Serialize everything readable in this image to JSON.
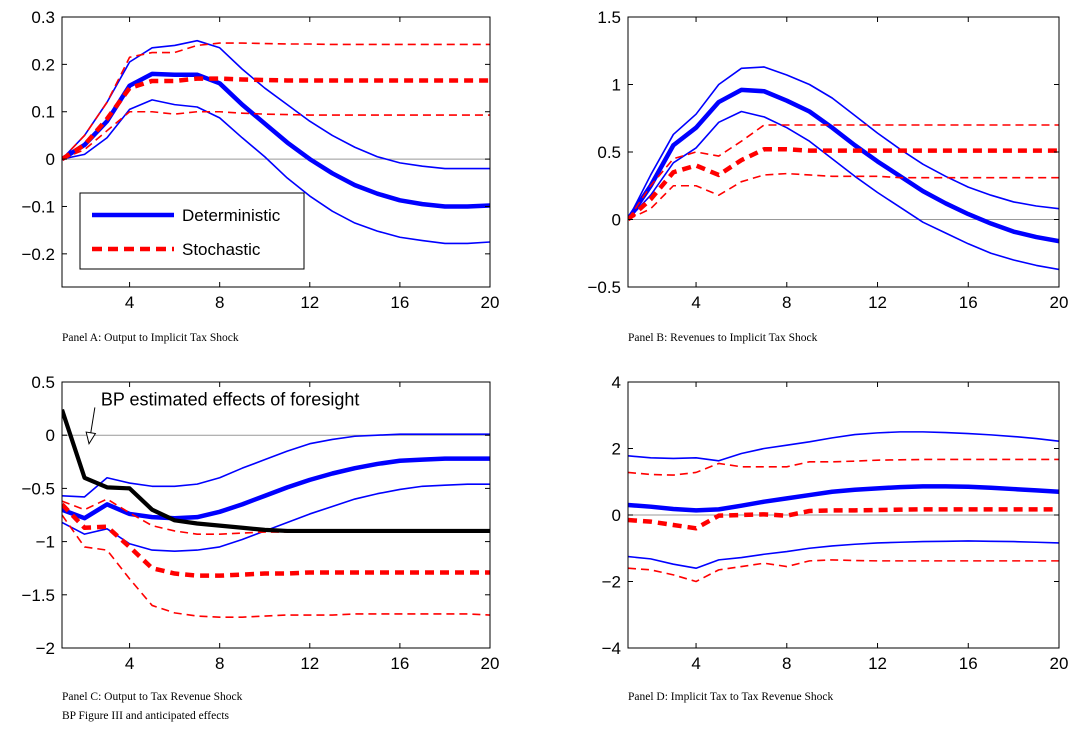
{
  "figure_note": "BP Figure III and anticipated effects",
  "colors": {
    "deterministic": "#0000ff",
    "stochastic": "#ff0000",
    "bp": "#000000",
    "zero_line": "#999999"
  },
  "chart_data": [
    {
      "type": "line",
      "caption": "Panel A: Output to Implicit Tax Shock",
      "xlim": [
        1,
        20
      ],
      "ylim": [
        -0.27,
        0.3
      ],
      "xticks": [
        4,
        8,
        12,
        16,
        20
      ],
      "yticks": [
        -0.2,
        -0.1,
        0,
        0.1,
        0.2,
        0.3
      ],
      "ytick_labels": [
        "−0.2",
        "−0.1",
        "0",
        "0.1",
        "0.2",
        "0.3"
      ],
      "legend": {
        "position": "lower-left",
        "entries": [
          {
            "label": "Deterministic",
            "color": "#0000ff",
            "dash": "solid"
          },
          {
            "label": "Stochastic",
            "color": "#ff0000",
            "dash": "dashed"
          }
        ]
      },
      "x": [
        1,
        2,
        3,
        4,
        5,
        6,
        7,
        8,
        9,
        10,
        11,
        12,
        13,
        14,
        15,
        16,
        17,
        18,
        19,
        20
      ],
      "series": [
        {
          "color": "#0000ff",
          "style": "thick",
          "values": [
            0,
            0.03,
            0.08,
            0.155,
            0.18,
            0.178,
            0.178,
            0.16,
            0.115,
            0.075,
            0.035,
            0,
            -0.03,
            -0.055,
            -0.073,
            -0.087,
            -0.095,
            -0.1,
            -0.1,
            -0.098
          ]
        },
        {
          "color": "#0000ff",
          "style": "thin",
          "values": [
            0,
            0.05,
            0.12,
            0.205,
            0.235,
            0.24,
            0.25,
            0.235,
            0.19,
            0.15,
            0.115,
            0.08,
            0.05,
            0.025,
            0.005,
            -0.008,
            -0.015,
            -0.02,
            -0.02,
            -0.02
          ]
        },
        {
          "color": "#0000ff",
          "style": "thin",
          "values": [
            0,
            0.01,
            0.045,
            0.105,
            0.125,
            0.115,
            0.11,
            0.087,
            0.045,
            0.005,
            -0.04,
            -0.078,
            -0.11,
            -0.135,
            -0.152,
            -0.165,
            -0.172,
            -0.178,
            -0.178,
            -0.175
          ]
        },
        {
          "color": "#ff0000",
          "style": "thick-dashed",
          "values": [
            0,
            0.03,
            0.085,
            0.15,
            0.165,
            0.165,
            0.17,
            0.17,
            0.168,
            0.167,
            0.166,
            0.166,
            0.166,
            0.166,
            0.166,
            0.166,
            0.166,
            0.166,
            0.166,
            0.166
          ]
        },
        {
          "color": "#ff0000",
          "style": "thin-dashed",
          "values": [
            0,
            0.05,
            0.12,
            0.215,
            0.225,
            0.225,
            0.24,
            0.245,
            0.245,
            0.244,
            0.243,
            0.243,
            0.242,
            0.242,
            0.242,
            0.242,
            0.242,
            0.242,
            0.242,
            0.242
          ]
        },
        {
          "color": "#ff0000",
          "style": "thin-dashed",
          "values": [
            0,
            0.02,
            0.06,
            0.1,
            0.1,
            0.095,
            0.1,
            0.1,
            0.097,
            0.095,
            0.094,
            0.093,
            0.093,
            0.093,
            0.093,
            0.093,
            0.093,
            0.093,
            0.093,
            0.093
          ]
        }
      ]
    },
    {
      "type": "line",
      "caption": "Panel B: Revenues to Implicit Tax Shock",
      "xlim": [
        1,
        20
      ],
      "ylim": [
        -0.5,
        1.5
      ],
      "xticks": [
        4,
        8,
        12,
        16,
        20
      ],
      "yticks": [
        -0.5,
        0,
        0.5,
        1,
        1.5
      ],
      "ytick_labels": [
        "−0.5",
        "0",
        "0.5",
        "1",
        "1.5"
      ],
      "x": [
        1,
        2,
        3,
        4,
        5,
        6,
        7,
        8,
        9,
        10,
        11,
        12,
        13,
        14,
        15,
        16,
        17,
        18,
        19,
        20
      ],
      "series": [
        {
          "color": "#0000ff",
          "style": "thick",
          "values": [
            0,
            0.25,
            0.55,
            0.68,
            0.87,
            0.96,
            0.95,
            0.88,
            0.8,
            0.68,
            0.55,
            0.43,
            0.32,
            0.21,
            0.12,
            0.04,
            -0.03,
            -0.09,
            -0.13,
            -0.16
          ]
        },
        {
          "color": "#0000ff",
          "style": "thin",
          "values": [
            0,
            0.33,
            0.63,
            0.78,
            1.0,
            1.12,
            1.13,
            1.07,
            1.0,
            0.9,
            0.77,
            0.64,
            0.52,
            0.41,
            0.32,
            0.24,
            0.18,
            0.13,
            0.1,
            0.08
          ]
        },
        {
          "color": "#0000ff",
          "style": "thin",
          "values": [
            0,
            0.18,
            0.42,
            0.53,
            0.72,
            0.8,
            0.76,
            0.68,
            0.58,
            0.45,
            0.32,
            0.2,
            0.09,
            -0.02,
            -0.1,
            -0.18,
            -0.25,
            -0.3,
            -0.34,
            -0.37
          ]
        },
        {
          "color": "#ff0000",
          "style": "thick-dashed",
          "values": [
            0,
            0.15,
            0.35,
            0.4,
            0.33,
            0.44,
            0.52,
            0.52,
            0.51,
            0.51,
            0.51,
            0.51,
            0.51,
            0.51,
            0.51,
            0.51,
            0.51,
            0.51,
            0.51,
            0.51
          ]
        },
        {
          "color": "#ff0000",
          "style": "thin-dashed",
          "values": [
            0,
            0.25,
            0.45,
            0.5,
            0.47,
            0.58,
            0.7,
            0.7,
            0.7,
            0.7,
            0.7,
            0.7,
            0.7,
            0.7,
            0.7,
            0.7,
            0.7,
            0.7,
            0.7,
            0.7
          ]
        },
        {
          "color": "#ff0000",
          "style": "thin-dashed",
          "values": [
            0,
            0.08,
            0.25,
            0.25,
            0.18,
            0.28,
            0.33,
            0.34,
            0.33,
            0.32,
            0.32,
            0.32,
            0.31,
            0.31,
            0.31,
            0.31,
            0.31,
            0.31,
            0.31,
            0.31
          ]
        }
      ]
    },
    {
      "type": "line",
      "caption": "Panel C: Output to Tax Revenue Shock",
      "xlim": [
        1,
        20
      ],
      "ylim": [
        -2,
        0.5
      ],
      "xticks": [
        4,
        8,
        12,
        16,
        20
      ],
      "yticks": [
        -2,
        -1.5,
        -1,
        -0.5,
        0,
        0.5
      ],
      "ytick_labels": [
        "−2",
        "−1.5",
        "−1",
        "−0.5",
        "0",
        "0.5"
      ],
      "annotation": {
        "text": "BP estimated effects of foresight",
        "x": 5.3,
        "y": 0.28,
        "arrow_to": [
          2.2,
          -0.08
        ]
      },
      "x": [
        1,
        2,
        3,
        4,
        5,
        6,
        7,
        8,
        9,
        10,
        11,
        12,
        13,
        14,
        15,
        16,
        17,
        18,
        19,
        20
      ],
      "series": [
        {
          "color": "#0000ff",
          "style": "thick",
          "values": [
            -0.7,
            -0.78,
            -0.65,
            -0.74,
            -0.77,
            -0.78,
            -0.77,
            -0.72,
            -0.65,
            -0.57,
            -0.49,
            -0.42,
            -0.36,
            -0.31,
            -0.27,
            -0.24,
            -0.23,
            -0.22,
            -0.22,
            -0.22
          ]
        },
        {
          "color": "#0000ff",
          "style": "thin",
          "values": [
            -0.57,
            -0.58,
            -0.4,
            -0.45,
            -0.48,
            -0.48,
            -0.46,
            -0.4,
            -0.31,
            -0.23,
            -0.15,
            -0.08,
            -0.04,
            -0.01,
            0.0,
            0.01,
            0.01,
            0.01,
            0.01,
            0.01
          ]
        },
        {
          "color": "#0000ff",
          "style": "thin",
          "values": [
            -0.82,
            -0.93,
            -0.88,
            -1.02,
            -1.08,
            -1.09,
            -1.08,
            -1.05,
            -0.98,
            -0.9,
            -0.82,
            -0.74,
            -0.67,
            -0.6,
            -0.55,
            -0.51,
            -0.48,
            -0.47,
            -0.46,
            -0.46
          ]
        },
        {
          "color": "#ff0000",
          "style": "thick-dashed",
          "values": [
            -0.65,
            -0.87,
            -0.86,
            -1.05,
            -1.25,
            -1.3,
            -1.32,
            -1.32,
            -1.31,
            -1.3,
            -1.3,
            -1.29,
            -1.29,
            -1.29,
            -1.29,
            -1.29,
            -1.29,
            -1.29,
            -1.29,
            -1.29
          ]
        },
        {
          "color": "#ff0000",
          "style": "thin-dashed",
          "values": [
            -0.62,
            -0.7,
            -0.6,
            -0.73,
            -0.85,
            -0.9,
            -0.93,
            -0.93,
            -0.92,
            -0.91,
            -0.91,
            -0.91,
            -0.91,
            -0.91,
            -0.91,
            -0.91,
            -0.91,
            -0.91,
            -0.91,
            -0.91
          ]
        },
        {
          "color": "#ff0000",
          "style": "thin-dashed",
          "values": [
            -0.75,
            -1.05,
            -1.08,
            -1.35,
            -1.6,
            -1.67,
            -1.7,
            -1.71,
            -1.71,
            -1.7,
            -1.69,
            -1.69,
            -1.69,
            -1.68,
            -1.68,
            -1.68,
            -1.68,
            -1.68,
            -1.68,
            -1.69
          ]
        },
        {
          "color": "#000000",
          "style": "black-thick",
          "values": [
            0.24,
            -0.4,
            -0.49,
            -0.5,
            -0.7,
            -0.8,
            -0.83,
            -0.85,
            -0.87,
            -0.89,
            -0.9,
            -0.9,
            -0.9,
            -0.9,
            -0.9,
            -0.9,
            -0.9,
            -0.9,
            -0.9,
            -0.9
          ]
        }
      ]
    },
    {
      "type": "line",
      "caption": "Panel D: Implicit Tax to Tax Revenue Shock",
      "xlim": [
        1,
        20
      ],
      "ylim": [
        -4,
        4
      ],
      "xticks": [
        4,
        8,
        12,
        16,
        20
      ],
      "yticks": [
        -4,
        -2,
        0,
        2,
        4
      ],
      "ytick_labels": [
        "−4",
        "−2",
        "0",
        "2",
        "4"
      ],
      "x": [
        1,
        2,
        3,
        4,
        5,
        6,
        7,
        8,
        9,
        10,
        11,
        12,
        13,
        14,
        15,
        16,
        17,
        18,
        19,
        20
      ],
      "series": [
        {
          "color": "#0000ff",
          "style": "thick",
          "values": [
            0.3,
            0.25,
            0.18,
            0.14,
            0.17,
            0.28,
            0.4,
            0.5,
            0.6,
            0.7,
            0.76,
            0.8,
            0.84,
            0.86,
            0.86,
            0.85,
            0.82,
            0.78,
            0.74,
            0.7
          ]
        },
        {
          "color": "#0000ff",
          "style": "thin",
          "values": [
            1.78,
            1.72,
            1.7,
            1.72,
            1.63,
            1.85,
            2.0,
            2.1,
            2.2,
            2.32,
            2.42,
            2.47,
            2.5,
            2.5,
            2.48,
            2.45,
            2.41,
            2.36,
            2.3,
            2.22
          ]
        },
        {
          "color": "#0000ff",
          "style": "thin",
          "values": [
            -1.25,
            -1.32,
            -1.48,
            -1.6,
            -1.35,
            -1.28,
            -1.18,
            -1.1,
            -1.0,
            -0.93,
            -0.88,
            -0.84,
            -0.82,
            -0.8,
            -0.79,
            -0.78,
            -0.79,
            -0.8,
            -0.82,
            -0.84
          ]
        },
        {
          "color": "#ff0000",
          "style": "thick-dashed",
          "values": [
            -0.15,
            -0.2,
            -0.3,
            -0.4,
            -0.02,
            0.0,
            0.02,
            -0.02,
            0.12,
            0.14,
            0.14,
            0.15,
            0.16,
            0.17,
            0.17,
            0.17,
            0.17,
            0.17,
            0.17,
            0.17
          ]
        },
        {
          "color": "#ff0000",
          "style": "thin-dashed",
          "values": [
            1.28,
            1.22,
            1.2,
            1.28,
            1.55,
            1.45,
            1.45,
            1.45,
            1.6,
            1.6,
            1.62,
            1.65,
            1.66,
            1.67,
            1.67,
            1.67,
            1.67,
            1.67,
            1.67,
            1.67
          ]
        },
        {
          "color": "#ff0000",
          "style": "thin-dashed",
          "values": [
            -1.6,
            -1.65,
            -1.8,
            -2.0,
            -1.65,
            -1.55,
            -1.45,
            -1.55,
            -1.38,
            -1.35,
            -1.37,
            -1.38,
            -1.38,
            -1.38,
            -1.38,
            -1.38,
            -1.38,
            -1.38,
            -1.38,
            -1.38
          ]
        }
      ]
    }
  ]
}
